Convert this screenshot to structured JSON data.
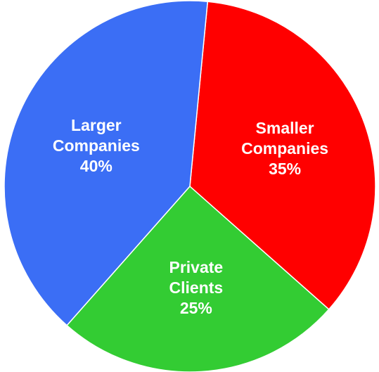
{
  "chart_data": {
    "type": "pie",
    "categories": [
      "Smaller Companies",
      "Private Clients",
      "Larger Companies"
    ],
    "values": [
      35,
      25,
      40
    ],
    "value_labels": [
      "35%",
      "25%",
      "40%"
    ],
    "colors": [
      "#ff0000",
      "#33cc33",
      "#3b6ef5"
    ]
  }
}
